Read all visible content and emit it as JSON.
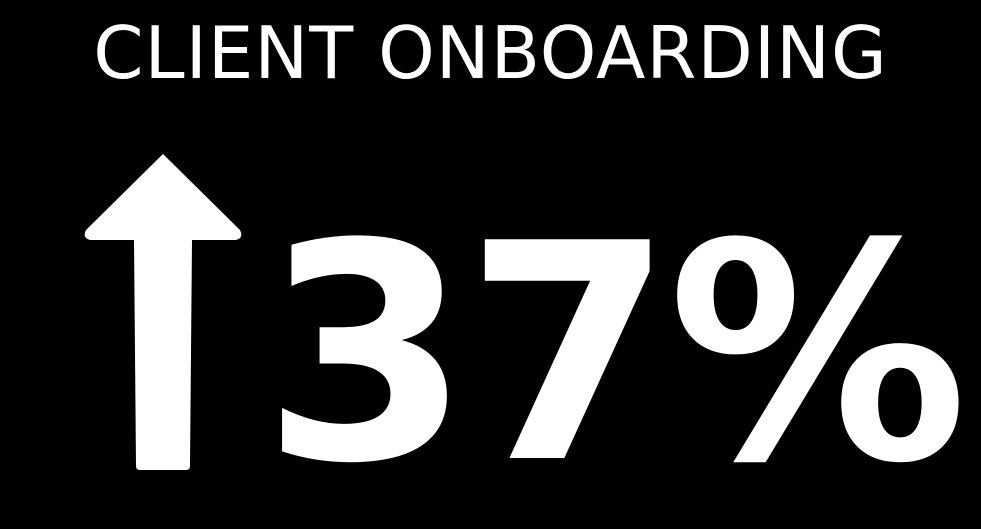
{
  "title": "CLIENT ONBOARDING",
  "stat": {
    "value": "37%",
    "direction_icon": "arrow-up-icon"
  },
  "colors": {
    "background": "#000000",
    "foreground": "#ffffff"
  }
}
